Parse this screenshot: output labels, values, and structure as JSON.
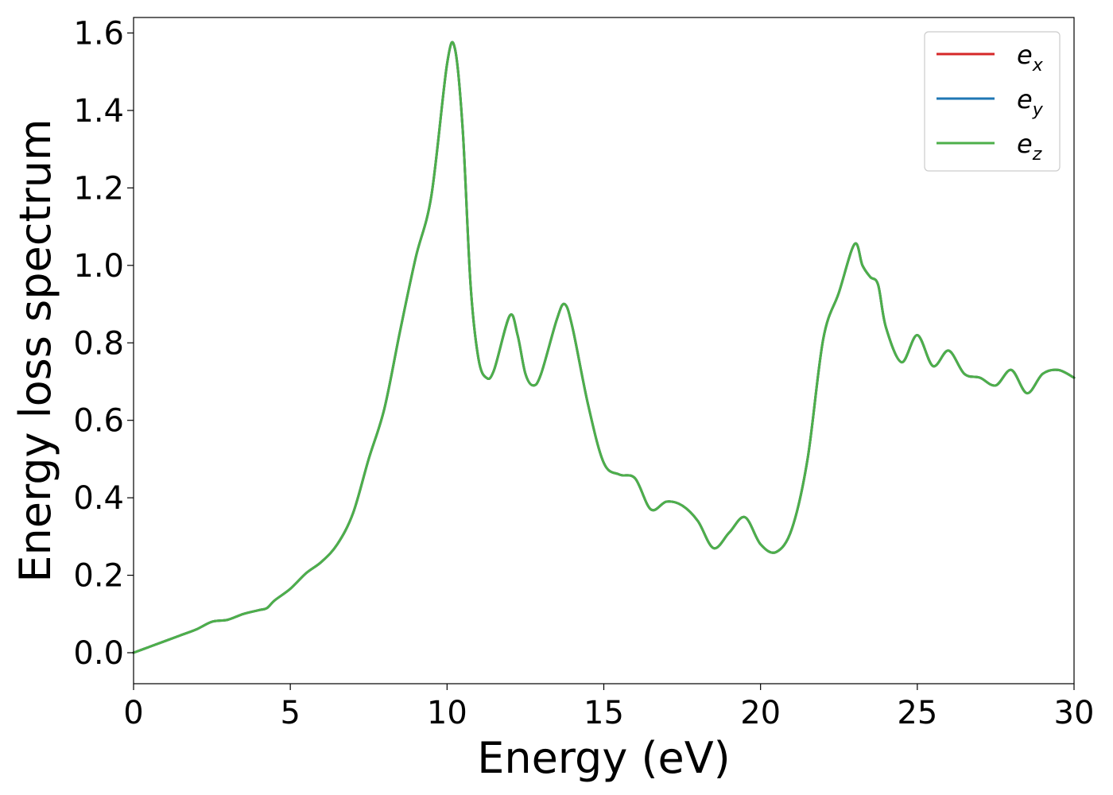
{
  "chart_data": {
    "type": "line",
    "title": "",
    "xlabel": "Energy (eV)",
    "ylabel": "Energy loss spectrum",
    "xlim": [
      0,
      30
    ],
    "ylim": [
      -0.08,
      1.64
    ],
    "xticks": [
      0,
      5,
      10,
      15,
      20,
      25,
      30
    ],
    "xtick_labels": [
      "0",
      "5",
      "10",
      "15",
      "20",
      "25",
      "30"
    ],
    "yticks": [
      0.0,
      0.2,
      0.4,
      0.6,
      0.8,
      1.0,
      1.2,
      1.4,
      1.6
    ],
    "ytick_labels": [
      "0.0",
      "0.2",
      "0.4",
      "0.6",
      "0.8",
      "1.0",
      "1.2",
      "1.4",
      "1.6"
    ],
    "grid": false,
    "legend_position": "top-right",
    "x": [
      0,
      0.5,
      1,
      1.5,
      2,
      2.5,
      3,
      3.5,
      4,
      4.25,
      4.5,
      5,
      5.5,
      6,
      6.5,
      7,
      7.5,
      8,
      8.5,
      9,
      9.5,
      10,
      10.25,
      10.5,
      10.75,
      11,
      11.25,
      11.5,
      12,
      12.25,
      12.5,
      12.75,
      13,
      13.5,
      13.75,
      14,
      14.5,
      15,
      15.5,
      16,
      16.5,
      17,
      17.5,
      18,
      18.5,
      19,
      19.5,
      20,
      20.5,
      21,
      21.5,
      22,
      22.5,
      23,
      23.25,
      23.5,
      23.75,
      24,
      24.5,
      25,
      25.5,
      26,
      26.5,
      27,
      27.5,
      28,
      28.5,
      29,
      29.5,
      30
    ],
    "series": [
      {
        "name": "e_x",
        "label_base": "e",
        "label_sub": "x",
        "color": "#d62728",
        "values": [
          0.0,
          0.015,
          0.03,
          0.045,
          0.06,
          0.08,
          0.085,
          0.1,
          0.11,
          0.115,
          0.135,
          0.165,
          0.205,
          0.235,
          0.28,
          0.36,
          0.5,
          0.63,
          0.83,
          1.02,
          1.18,
          1.52,
          1.56,
          1.35,
          0.95,
          0.76,
          0.71,
          0.73,
          0.87,
          0.82,
          0.72,
          0.69,
          0.72,
          0.86,
          0.9,
          0.84,
          0.64,
          0.49,
          0.46,
          0.45,
          0.37,
          0.39,
          0.38,
          0.34,
          0.27,
          0.31,
          0.35,
          0.28,
          0.26,
          0.32,
          0.5,
          0.81,
          0.93,
          1.055,
          1.0,
          0.97,
          0.95,
          0.84,
          0.75,
          0.82,
          0.74,
          0.78,
          0.72,
          0.71,
          0.69,
          0.73,
          0.67,
          0.72,
          0.73,
          0.71
        ]
      },
      {
        "name": "e_y",
        "label_base": "e",
        "label_sub": "y",
        "color": "#1f77b4",
        "values": [
          0.0,
          0.015,
          0.03,
          0.045,
          0.06,
          0.08,
          0.085,
          0.1,
          0.11,
          0.115,
          0.135,
          0.165,
          0.205,
          0.235,
          0.28,
          0.36,
          0.5,
          0.63,
          0.83,
          1.02,
          1.18,
          1.52,
          1.56,
          1.35,
          0.95,
          0.76,
          0.71,
          0.73,
          0.87,
          0.82,
          0.72,
          0.69,
          0.72,
          0.86,
          0.9,
          0.84,
          0.64,
          0.49,
          0.46,
          0.45,
          0.37,
          0.39,
          0.38,
          0.34,
          0.27,
          0.31,
          0.35,
          0.28,
          0.26,
          0.32,
          0.5,
          0.81,
          0.93,
          1.055,
          1.0,
          0.97,
          0.95,
          0.84,
          0.75,
          0.82,
          0.74,
          0.78,
          0.72,
          0.71,
          0.69,
          0.73,
          0.67,
          0.72,
          0.73,
          0.71
        ]
      },
      {
        "name": "e_z",
        "label_base": "e",
        "label_sub": "z",
        "color": "#4daf4a",
        "values": [
          0.0,
          0.015,
          0.03,
          0.045,
          0.06,
          0.08,
          0.085,
          0.1,
          0.11,
          0.115,
          0.135,
          0.165,
          0.205,
          0.235,
          0.28,
          0.36,
          0.5,
          0.63,
          0.83,
          1.02,
          1.18,
          1.52,
          1.56,
          1.35,
          0.95,
          0.76,
          0.71,
          0.73,
          0.87,
          0.82,
          0.72,
          0.69,
          0.72,
          0.86,
          0.9,
          0.84,
          0.64,
          0.49,
          0.46,
          0.45,
          0.37,
          0.39,
          0.38,
          0.34,
          0.27,
          0.31,
          0.35,
          0.28,
          0.26,
          0.32,
          0.5,
          0.81,
          0.93,
          1.055,
          1.0,
          0.97,
          0.95,
          0.84,
          0.75,
          0.82,
          0.74,
          0.78,
          0.72,
          0.71,
          0.69,
          0.73,
          0.67,
          0.72,
          0.73,
          0.71
        ]
      }
    ]
  }
}
